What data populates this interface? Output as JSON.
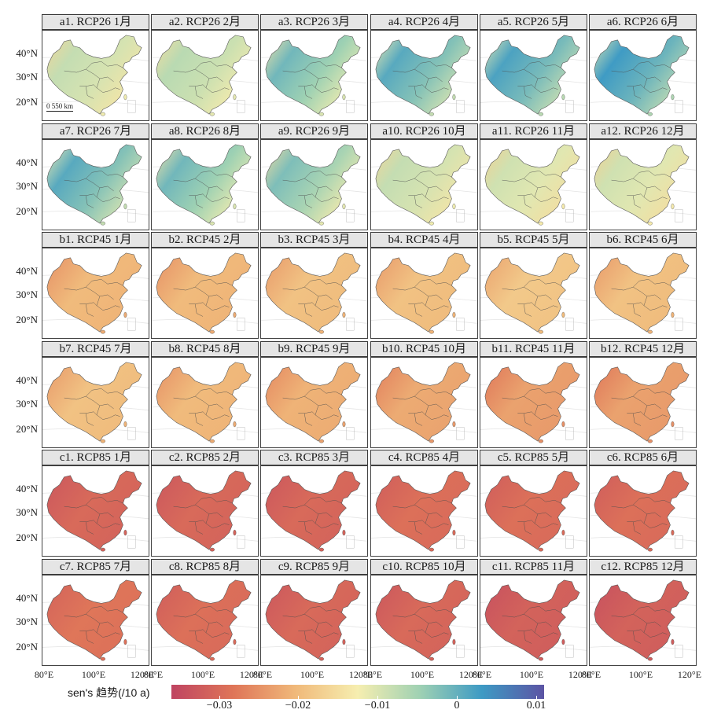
{
  "panels": [
    {
      "label": "a1. RCP26 1月",
      "scenario": "RCP26",
      "month": 1,
      "mean_trend": -0.012
    },
    {
      "label": "a2. RCP26 2月",
      "scenario": "RCP26",
      "month": 2,
      "mean_trend": -0.011
    },
    {
      "label": "a3. RCP26 3月",
      "scenario": "RCP26",
      "month": 3,
      "mean_trend": -0.01
    },
    {
      "label": "a4. RCP26 4月",
      "scenario": "RCP26",
      "month": 4,
      "mean_trend": -0.008
    },
    {
      "label": "a5. RCP26 5月",
      "scenario": "RCP26",
      "month": 5,
      "mean_trend": -0.007
    },
    {
      "label": "a6. RCP26 6月",
      "scenario": "RCP26",
      "month": 6,
      "mean_trend": -0.006
    },
    {
      "label": "a7. RCP26 7月",
      "scenario": "RCP26",
      "month": 7,
      "mean_trend": -0.008
    },
    {
      "label": "a8. RCP26 8月",
      "scenario": "RCP26",
      "month": 8,
      "mean_trend": -0.01
    },
    {
      "label": "a9. RCP26 9月",
      "scenario": "RCP26",
      "month": 9,
      "mean_trend": -0.011
    },
    {
      "label": "a10. RCP26 10月",
      "scenario": "RCP26",
      "month": 10,
      "mean_trend": -0.012
    },
    {
      "label": "a11. RCP26 11月",
      "scenario": "RCP26",
      "month": 11,
      "mean_trend": -0.013
    },
    {
      "label": "a12. RCP26 12月",
      "scenario": "RCP26",
      "month": 12,
      "mean_trend": -0.013
    },
    {
      "label": "b1. RCP45 1月",
      "scenario": "RCP45",
      "month": 1,
      "mean_trend": -0.022
    },
    {
      "label": "b2. RCP45 2月",
      "scenario": "RCP45",
      "month": 2,
      "mean_trend": -0.022
    },
    {
      "label": "b3. RCP45 3月",
      "scenario": "RCP45",
      "month": 3,
      "mean_trend": -0.021
    },
    {
      "label": "b4. RCP45 4月",
      "scenario": "RCP45",
      "month": 4,
      "mean_trend": -0.021
    },
    {
      "label": "b5. RCP45 5月",
      "scenario": "RCP45",
      "month": 5,
      "mean_trend": -0.02
    },
    {
      "label": "b6. RCP45 6月",
      "scenario": "RCP45",
      "month": 6,
      "mean_trend": -0.021
    },
    {
      "label": "b7. RCP45 7月",
      "scenario": "RCP45",
      "month": 7,
      "mean_trend": -0.021
    },
    {
      "label": "b8. RCP45 8月",
      "scenario": "RCP45",
      "month": 8,
      "mean_trend": -0.022
    },
    {
      "label": "b9. RCP45 9月",
      "scenario": "RCP45",
      "month": 9,
      "mean_trend": -0.023
    },
    {
      "label": "b10. RCP45 10月",
      "scenario": "RCP45",
      "month": 10,
      "mean_trend": -0.024
    },
    {
      "label": "b11. RCP45 11月",
      "scenario": "RCP45",
      "month": 11,
      "mean_trend": -0.025
    },
    {
      "label": "b12. RCP45 12月",
      "scenario": "RCP45",
      "month": 12,
      "mean_trend": -0.025
    },
    {
      "label": "c1. RCP85 1月",
      "scenario": "RCP85",
      "month": 1,
      "mean_trend": -0.031
    },
    {
      "label": "c2. RCP85 2月",
      "scenario": "RCP85",
      "month": 2,
      "mean_trend": -0.031
    },
    {
      "label": "c3. RCP85 3月",
      "scenario": "RCP85",
      "month": 3,
      "mean_trend": -0.031
    },
    {
      "label": "c4. RCP85 4月",
      "scenario": "RCP85",
      "month": 4,
      "mean_trend": -0.03
    },
    {
      "label": "c5. RCP85 5月",
      "scenario": "RCP85",
      "month": 5,
      "mean_trend": -0.03
    },
    {
      "label": "c6. RCP85 6月",
      "scenario": "RCP85",
      "month": 6,
      "mean_trend": -0.03
    },
    {
      "label": "c7. RCP85 7月",
      "scenario": "RCP85",
      "month": 7,
      "mean_trend": -0.029
    },
    {
      "label": "c8. RCP85 8月",
      "scenario": "RCP85",
      "month": 8,
      "mean_trend": -0.03
    },
    {
      "label": "c9. RCP85 9月",
      "scenario": "RCP85",
      "month": 9,
      "mean_trend": -0.031
    },
    {
      "label": "c10. RCP85 10月",
      "scenario": "RCP85",
      "month": 10,
      "mean_trend": -0.031
    },
    {
      "label": "c11. RCP85 11月",
      "scenario": "RCP85",
      "month": 11,
      "mean_trend": -0.032
    },
    {
      "label": "c12. RCP85 12月",
      "scenario": "RCP85",
      "month": 12,
      "mean_trend": -0.032
    }
  ],
  "lat_labels": [
    "40°N",
    "30°N",
    "20°N"
  ],
  "lon_labels": [
    "80°E",
    "100°E",
    "120°E"
  ],
  "scale_bar": {
    "left": "0",
    "right": "550 km"
  },
  "colorbar": {
    "title": "sen's 趋势(/10 a)",
    "ticks": [
      "−0.03",
      "−0.02",
      "−0.01",
      "0",
      "0.01"
    ],
    "tick_values": [
      -0.03,
      -0.02,
      -0.01,
      0,
      0.01
    ],
    "range": [
      -0.036,
      0.011
    ],
    "colors": [
      "#bf4461",
      "#df7558",
      "#f0b97a",
      "#f6eeb0",
      "#9fd1b3",
      "#3d9ac4",
      "#5c54a4"
    ]
  }
}
